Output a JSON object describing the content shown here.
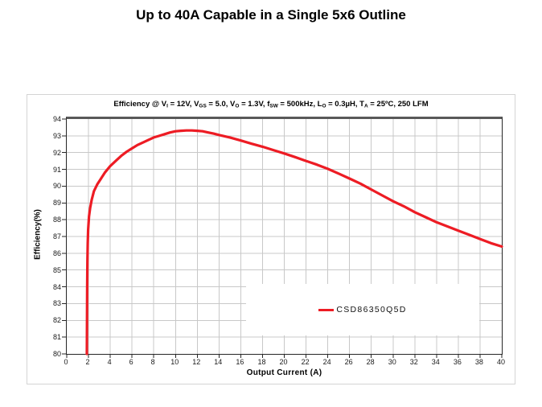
{
  "page": {
    "title": "Up to 40A Capable in a Single 5x6 Outline"
  },
  "colors": {
    "curve": "#ed1c24",
    "grid": "#c8c8c8",
    "axis": "#262626",
    "plot_top_border": "#595959",
    "frame_border": "#d4d4d4",
    "text": "#000000"
  },
  "chart_data": {
    "type": "line",
    "title_plain": "Efficiency @ VI = 12V, VGS = 5.0, VO = 1.3V, fSW = 500kHz, LO = 0.3µH, TA = 25ºC, 250 LFM",
    "title_segments": [
      {
        "t": "Efficiency @ V"
      },
      {
        "sub": "I"
      },
      {
        "t": " = 12V, V"
      },
      {
        "sub": "GS"
      },
      {
        "t": " = 5.0, V"
      },
      {
        "sub": "O"
      },
      {
        "t": " = 1.3V, f"
      },
      {
        "sub": "SW"
      },
      {
        "t": " = 500kHz, L"
      },
      {
        "sub": "O"
      },
      {
        "t": " = 0.3µH, T"
      },
      {
        "sub": "A"
      },
      {
        "t": " = 25ºC, 250 LFM"
      }
    ],
    "xlabel": "Output Current (A)",
    "ylabel": "Efficiency(%)",
    "xlim": [
      0,
      40
    ],
    "ylim": [
      80,
      94
    ],
    "xticks": [
      0,
      2,
      4,
      6,
      8,
      10,
      12,
      14,
      16,
      18,
      20,
      22,
      24,
      26,
      28,
      30,
      32,
      34,
      36,
      38,
      40
    ],
    "yticks": [
      80,
      81,
      82,
      83,
      84,
      85,
      86,
      87,
      88,
      89,
      90,
      91,
      92,
      93,
      94
    ],
    "grid": true,
    "legend": {
      "position": "inside-lower-right",
      "entries": [
        {
          "label": "CSD86350Q5D",
          "color": "#ed1c24"
        }
      ]
    },
    "series": [
      {
        "name": "CSD86350Q5D",
        "color": "#ed1c24",
        "points": [
          [
            1.85,
            80
          ],
          [
            1.86,
            82
          ],
          [
            1.88,
            84
          ],
          [
            1.9,
            85.5
          ],
          [
            1.93,
            86.6
          ],
          [
            1.97,
            87.4
          ],
          [
            2.05,
            88.2
          ],
          [
            2.15,
            88.7
          ],
          [
            2.3,
            89.2
          ],
          [
            2.5,
            89.7
          ],
          [
            2.8,
            90.1
          ],
          [
            3.1,
            90.4
          ],
          [
            3.5,
            90.8
          ],
          [
            4,
            91.2
          ],
          [
            4.5,
            91.5
          ],
          [
            5,
            91.8
          ],
          [
            5.5,
            92.05
          ],
          [
            6,
            92.25
          ],
          [
            6.5,
            92.45
          ],
          [
            7,
            92.6
          ],
          [
            7.5,
            92.75
          ],
          [
            8,
            92.9
          ],
          [
            8.5,
            93.0
          ],
          [
            9,
            93.1
          ],
          [
            9.5,
            93.2
          ],
          [
            10,
            93.27
          ],
          [
            10.5,
            93.3
          ],
          [
            11,
            93.32
          ],
          [
            11.5,
            93.32
          ],
          [
            12,
            93.3
          ],
          [
            12.5,
            93.27
          ],
          [
            13,
            93.2
          ],
          [
            13.5,
            93.13
          ],
          [
            14,
            93.05
          ],
          [
            15,
            92.9
          ],
          [
            16,
            92.72
          ],
          [
            17,
            92.53
          ],
          [
            18,
            92.35
          ],
          [
            19,
            92.15
          ],
          [
            20,
            91.95
          ],
          [
            21,
            91.73
          ],
          [
            22,
            91.5
          ],
          [
            23,
            91.28
          ],
          [
            24,
            91.03
          ],
          [
            25,
            90.75
          ],
          [
            26,
            90.45
          ],
          [
            27,
            90.15
          ],
          [
            28,
            89.8
          ],
          [
            29,
            89.45
          ],
          [
            30,
            89.1
          ],
          [
            31,
            88.8
          ],
          [
            32,
            88.45
          ],
          [
            33,
            88.15
          ],
          [
            34,
            87.85
          ],
          [
            35,
            87.6
          ],
          [
            36,
            87.35
          ],
          [
            37,
            87.1
          ],
          [
            38,
            86.85
          ],
          [
            39,
            86.6
          ],
          [
            40,
            86.4
          ]
        ]
      }
    ]
  }
}
